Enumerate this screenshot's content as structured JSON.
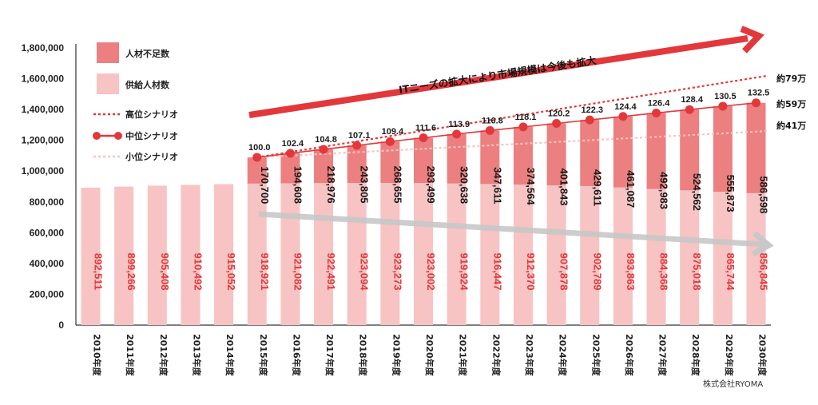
{
  "chart_data": {
    "type": "bar",
    "stacked": true,
    "categories": [
      "2010年度",
      "2011年度",
      "2012年度",
      "2013年度",
      "2014年度",
      "2015年度",
      "2016年度",
      "2017年度",
      "2018年度",
      "2019年度",
      "2020年度",
      "2021年度",
      "2022年度",
      "2023年度",
      "2024年度",
      "2025年度",
      "2026年度",
      "2027年度",
      "2028年度",
      "2029年度",
      "2030年度"
    ],
    "series": [
      {
        "name": "供給人材数",
        "color": "#f7c3c3",
        "values": [
          892511,
          899266,
          905408,
          910492,
          915052,
          918921,
          921082,
          922491,
          923094,
          923273,
          923002,
          919924,
          916447,
          912370,
          907878,
          902789,
          893863,
          884368,
          875018,
          865744,
          856845
        ],
        "labels": [
          "892,511",
          "899,266",
          "905,408",
          "910,492",
          "915,052",
          "918,921",
          "921,082",
          "922,491",
          "923,094",
          "923,273",
          "923,002",
          "919,924",
          "916,447",
          "912,370",
          "907,878",
          "902,789",
          "893,863",
          "884,368",
          "875,018",
          "865,744",
          "856,845"
        ]
      },
      {
        "name": "人材不足数",
        "color": "#ec7f7f",
        "values": [
          null,
          null,
          null,
          null,
          null,
          170700,
          194608,
          218976,
          243805,
          268655,
          293499,
          320638,
          347611,
          374564,
          401843,
          429611,
          461087,
          492983,
          524562,
          555873,
          586598
        ],
        "labels": [
          "",
          "",
          "",
          "",
          "",
          "170,700",
          "194,608",
          "218,976",
          "243,805",
          "268,655",
          "293,499",
          "320,638",
          "347,611",
          "374,564",
          "401,843",
          "429,611",
          "461,087",
          "492,983",
          "524,562",
          "555,873",
          "586,598"
        ]
      }
    ],
    "mid_scenario": {
      "name": "中位シナリオ",
      "color": "#e2383c",
      "index_labels": [
        "100.0",
        "102.4",
        "104.8",
        "107.1",
        "109.4",
        "111.6",
        "113.9",
        "116.8",
        "118.1",
        "120.2",
        "122.3",
        "124.4",
        "126.4",
        "128.4",
        "130.5",
        "132.5"
      ],
      "start_index": 5
    },
    "high_scenario": {
      "name": "高位シナリオ",
      "color": "#e2383c",
      "end_value": 1620000,
      "end_label": "約79万"
    },
    "mid_end_label": "約59万",
    "low_scenario": {
      "name": "小位シナリオ",
      "color": "#f7c3c3",
      "end_value": 1260000,
      "end_label": "約41万"
    },
    "ylim": [
      0,
      1800000
    ],
    "yticks": [
      0,
      200000,
      400000,
      600000,
      800000,
      1000000,
      1200000,
      1400000,
      1600000,
      1800000
    ],
    "ytick_labels": [
      "0",
      "200,000",
      "400,000",
      "600,000",
      "800,000",
      "1,000,000",
      "1,200,000",
      "1,400,000",
      "1,600,000",
      "1,800,000"
    ],
    "annotation": "ITニーズの拡大により市場規模は今後も拡大",
    "credit": "株式会社RYOMA"
  },
  "legend": {
    "shortage": "人材不足数",
    "supply": "供給人材数",
    "high": "高位シナリオ",
    "mid": "中位シナリオ",
    "low": "小位シナリオ"
  },
  "colors": {
    "shortage": "#ec7f7f",
    "supply": "#f7c3c3",
    "accent": "#e2383c",
    "gray_arrow": "#c8c8c8"
  }
}
